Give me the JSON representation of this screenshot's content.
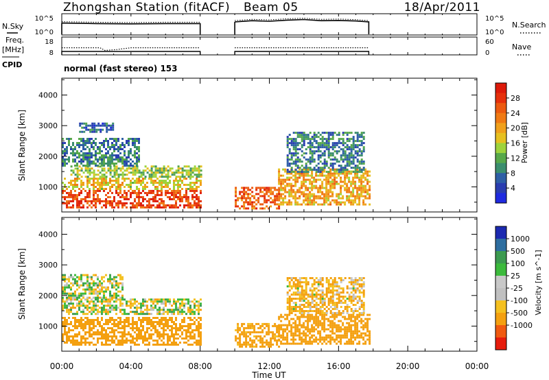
{
  "header": {
    "station": "Zhongshan Station (fitACF)",
    "beam": "Beam 05",
    "date": "18/Apr/2011"
  },
  "noise_panel": {
    "left_label": "N.Sky",
    "right_label": "N.Search",
    "left_ticks": [
      "10^5",
      "10^0"
    ],
    "right_ticks": [
      "10^5",
      "10^0"
    ]
  },
  "freq_panel": {
    "left_label_1": "Freq.",
    "left_label_2": "[MHz]",
    "left_ticks": [
      "18",
      "8"
    ],
    "right_label": "Nave",
    "right_ticks": [
      "60",
      "0"
    ]
  },
  "cpid": {
    "label": "CPID",
    "text": "normal (fast stereo) 153"
  },
  "colors": {
    "power": [
      "#1f2ae0",
      "#2a3db0",
      "#2e5fa6",
      "#3b8e6e",
      "#57a84a",
      "#9ed33c",
      "#e6c020",
      "#f0a01c",
      "#f07a14",
      "#ec5a10",
      "#e6300c",
      "#dd1a0a"
    ],
    "velocity": [
      "#e61c0c",
      "#f05a10",
      "#f4a010",
      "#f4c020",
      "#c0c0c0",
      "#c8c8c8",
      "#3cba3c",
      "#3c9a50",
      "#2e6ea0",
      "#1c2ab0"
    ]
  },
  "chart_data": {
    "type": "heatmap",
    "x_axis": {
      "label": "Time UT",
      "range_hours": [
        0,
        24
      ],
      "tick_labels": [
        "00:00",
        "04:00",
        "08:00",
        "12:00",
        "16:00",
        "20:00",
        "00:00"
      ]
    },
    "y_axis": {
      "label": "Slant Range [km]",
      "range_km": [
        180,
        4550
      ],
      "tick_labels": [
        "1000",
        "2000",
        "3000",
        "4000"
      ]
    },
    "data_gap_hours": [
      8.0,
      10.0
    ],
    "data_end_hour": 17.75,
    "noise_series": {
      "segments_hours": [
        [
          0.0,
          8.0
        ],
        [
          10.0,
          17.75
        ]
      ],
      "sky_level_log10": [
        [
          0.0,
          3.2
        ],
        [
          2.0,
          3.0
        ],
        [
          4.0,
          2.9
        ],
        [
          6.0,
          3.0
        ],
        [
          8.0,
          3.0
        ],
        [
          10.0,
          3.6
        ],
        [
          11.0,
          4.0
        ],
        [
          12.0,
          3.8
        ],
        [
          13.0,
          4.2
        ],
        [
          14.0,
          4.4
        ],
        [
          15.0,
          4.0
        ],
        [
          16.0,
          4.1
        ],
        [
          17.0,
          3.9
        ],
        [
          17.75,
          3.6
        ]
      ]
    },
    "frequency_mhz": [
      [
        0.0,
        12.0
      ],
      [
        2.2,
        12.0
      ],
      [
        2.5,
        10.5
      ],
      [
        3.2,
        11.0
      ],
      [
        4.0,
        12.0
      ],
      [
        8.0,
        12.0
      ],
      [
        10.0,
        12.0
      ],
      [
        17.75,
        12.0
      ]
    ],
    "power_panel": {
      "colorbar_label": "Power [dB]",
      "colorbar_ticks": [
        "4",
        "8",
        "12",
        "16",
        "20",
        "24",
        "28"
      ],
      "colorbar_range_db": [
        0,
        32
      ],
      "echo_regions": [
        {
          "t0": 0.0,
          "t1": 8.0,
          "r0": 350,
          "r1": 900,
          "level_db": 28
        },
        {
          "t0": 0.0,
          "t1": 8.0,
          "r0": 900,
          "r1": 1300,
          "level_db": 18
        },
        {
          "t0": 0.5,
          "t1": 8.0,
          "r0": 1300,
          "r1": 1700,
          "level_db": 14
        },
        {
          "t0": 0.0,
          "t1": 4.5,
          "r0": 1700,
          "r1": 2600,
          "level_db": 8
        },
        {
          "t0": 1.0,
          "t1": 3.0,
          "r0": 2800,
          "r1": 3100,
          "level_db": 6
        },
        {
          "t0": 10.0,
          "t1": 12.5,
          "r0": 300,
          "r1": 1000,
          "level_db": 26
        },
        {
          "t0": 12.5,
          "t1": 17.75,
          "r0": 400,
          "r1": 1600,
          "level_db": 20
        },
        {
          "t0": 13.0,
          "t1": 17.5,
          "r0": 1500,
          "r1": 2800,
          "level_db": 8
        }
      ]
    },
    "velocity_panel": {
      "colorbar_label": "Velocity [m s^-1]",
      "colorbar_ticks": [
        "1000",
        "500",
        "100",
        "25",
        "-25",
        "-100",
        "-500",
        "-1000"
      ],
      "echo_regions": [
        {
          "t0": 0.0,
          "t1": 8.0,
          "r0": 400,
          "r1": 1300,
          "velocity_ms": -250
        },
        {
          "t0": 0.0,
          "t1": 8.0,
          "r0": 1400,
          "r1": 1900,
          "velocity_ms": 0
        },
        {
          "t0": 0.0,
          "t1": 3.5,
          "r0": 1900,
          "r1": 2700,
          "velocity_ms": 0
        },
        {
          "t0": 10.0,
          "t1": 12.5,
          "r0": 300,
          "r1": 1100,
          "velocity_ms": -200
        },
        {
          "t0": 12.5,
          "t1": 17.75,
          "r0": 400,
          "r1": 1400,
          "velocity_ms": -300
        },
        {
          "t0": 13.0,
          "t1": 17.5,
          "r0": 1400,
          "r1": 2600,
          "velocity_ms": -100
        }
      ]
    }
  }
}
